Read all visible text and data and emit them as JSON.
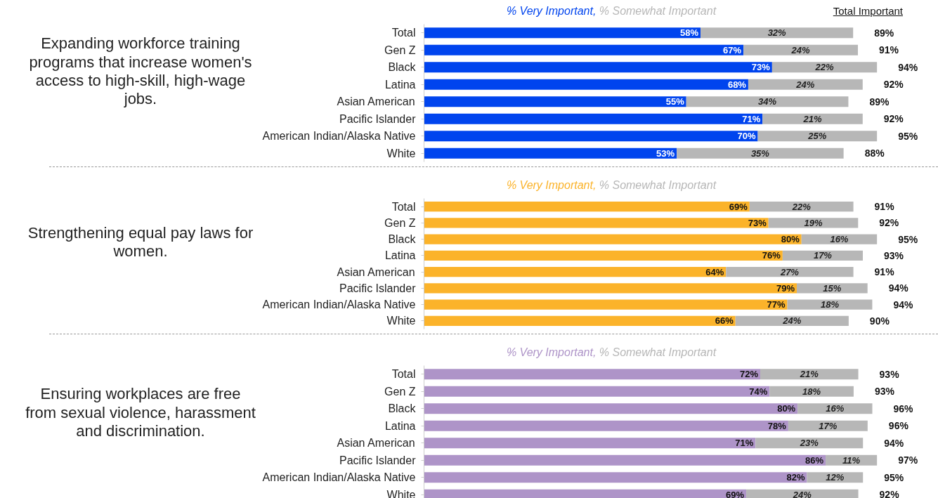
{
  "chart_data": [
    {
      "type": "bar",
      "orientation": "horizontal",
      "stacked": true,
      "legend": "top",
      "tick_labels": "y",
      "y2label": "Total Important",
      "annotations": [
        "Expanding workforce training programs that increase women's access to high-skill, high-wage jobs."
      ],
      "categories": [
        "Total",
        "Gen Z",
        "Black",
        "Latina",
        "Asian American",
        "Pacific Islander",
        "American Indian/Alaska Native",
        "White"
      ],
      "series": [
        {
          "name": "% Very Important,",
          "color": "#0044ee",
          "values": [
            58,
            67,
            73,
            68,
            55,
            71,
            70,
            53
          ],
          "value_labels": [
            "58%",
            "67%",
            "73%",
            "68%",
            "55%",
            "71%",
            "70%",
            "53%"
          ]
        },
        {
          "name": "% Somewhat Important",
          "color": "#b7b7b7",
          "values": [
            32,
            24,
            22,
            24,
            34,
            21,
            25,
            35
          ],
          "value_labels": [
            "32%",
            "24%",
            "22%",
            "24%",
            "34%",
            "21%",
            "25%",
            "35%"
          ]
        }
      ],
      "totals": [
        "89%",
        "91%",
        "94%",
        "92%",
        "89%",
        "92%",
        "95%",
        "88%"
      ]
    },
    {
      "type": "bar",
      "orientation": "horizontal",
      "stacked": true,
      "legend": "top",
      "tick_labels": "y",
      "annotations": [
        "Strengthening equal pay laws for women."
      ],
      "categories": [
        "Total",
        "Gen Z",
        "Black",
        "Latina",
        "Asian American",
        "Pacific Islander",
        "American Indian/Alaska Native",
        "White"
      ],
      "series": [
        {
          "name": "% Very Important,",
          "color": "#fbb32a",
          "values": [
            69,
            73,
            80,
            76,
            64,
            79,
            77,
            66
          ],
          "value_labels": [
            "69%",
            "73%",
            "80%",
            "76%",
            "64%",
            "79%",
            "77%",
            "66%"
          ]
        },
        {
          "name": "% Somewhat Important",
          "color": "#b7b7b7",
          "values": [
            22,
            19,
            16,
            17,
            27,
            15,
            18,
            24
          ],
          "value_labels": [
            "22%",
            "19%",
            "16%",
            "17%",
            "27%",
            "15%",
            "18%",
            "24%"
          ]
        }
      ],
      "totals": [
        "91%",
        "92%",
        "95%",
        "93%",
        "91%",
        "94%",
        "94%",
        "90%"
      ]
    },
    {
      "type": "bar",
      "orientation": "horizontal",
      "stacked": true,
      "legend": "top",
      "tick_labels": "y",
      "annotations": [
        "Ensuring workplaces are free from sexual violence, harassment and discrimination."
      ],
      "categories": [
        "Total",
        "Gen Z",
        "Black",
        "Latina",
        "Asian American",
        "Pacific Islander",
        "American Indian/Alaska Native",
        "White"
      ],
      "series": [
        {
          "name": "% Very Important,",
          "color": "#ae94c8",
          "values": [
            72,
            74,
            80,
            78,
            71,
            86,
            82,
            69
          ],
          "value_labels": [
            "72%",
            "74%",
            "80%",
            "78%",
            "71%",
            "86%",
            "82%",
            "69%"
          ]
        },
        {
          "name": "% Somewhat Important",
          "color": "#b7b7b7",
          "values": [
            21,
            18,
            16,
            17,
            23,
            11,
            12,
            24
          ],
          "value_labels": [
            "21%",
            "18%",
            "16%",
            "17%",
            "23%",
            "11%",
            "12%",
            "24%"
          ]
        }
      ],
      "totals": [
        "93%",
        "93%",
        "96%",
        "96%",
        "94%",
        "97%",
        "95%",
        "92%"
      ]
    }
  ]
}
